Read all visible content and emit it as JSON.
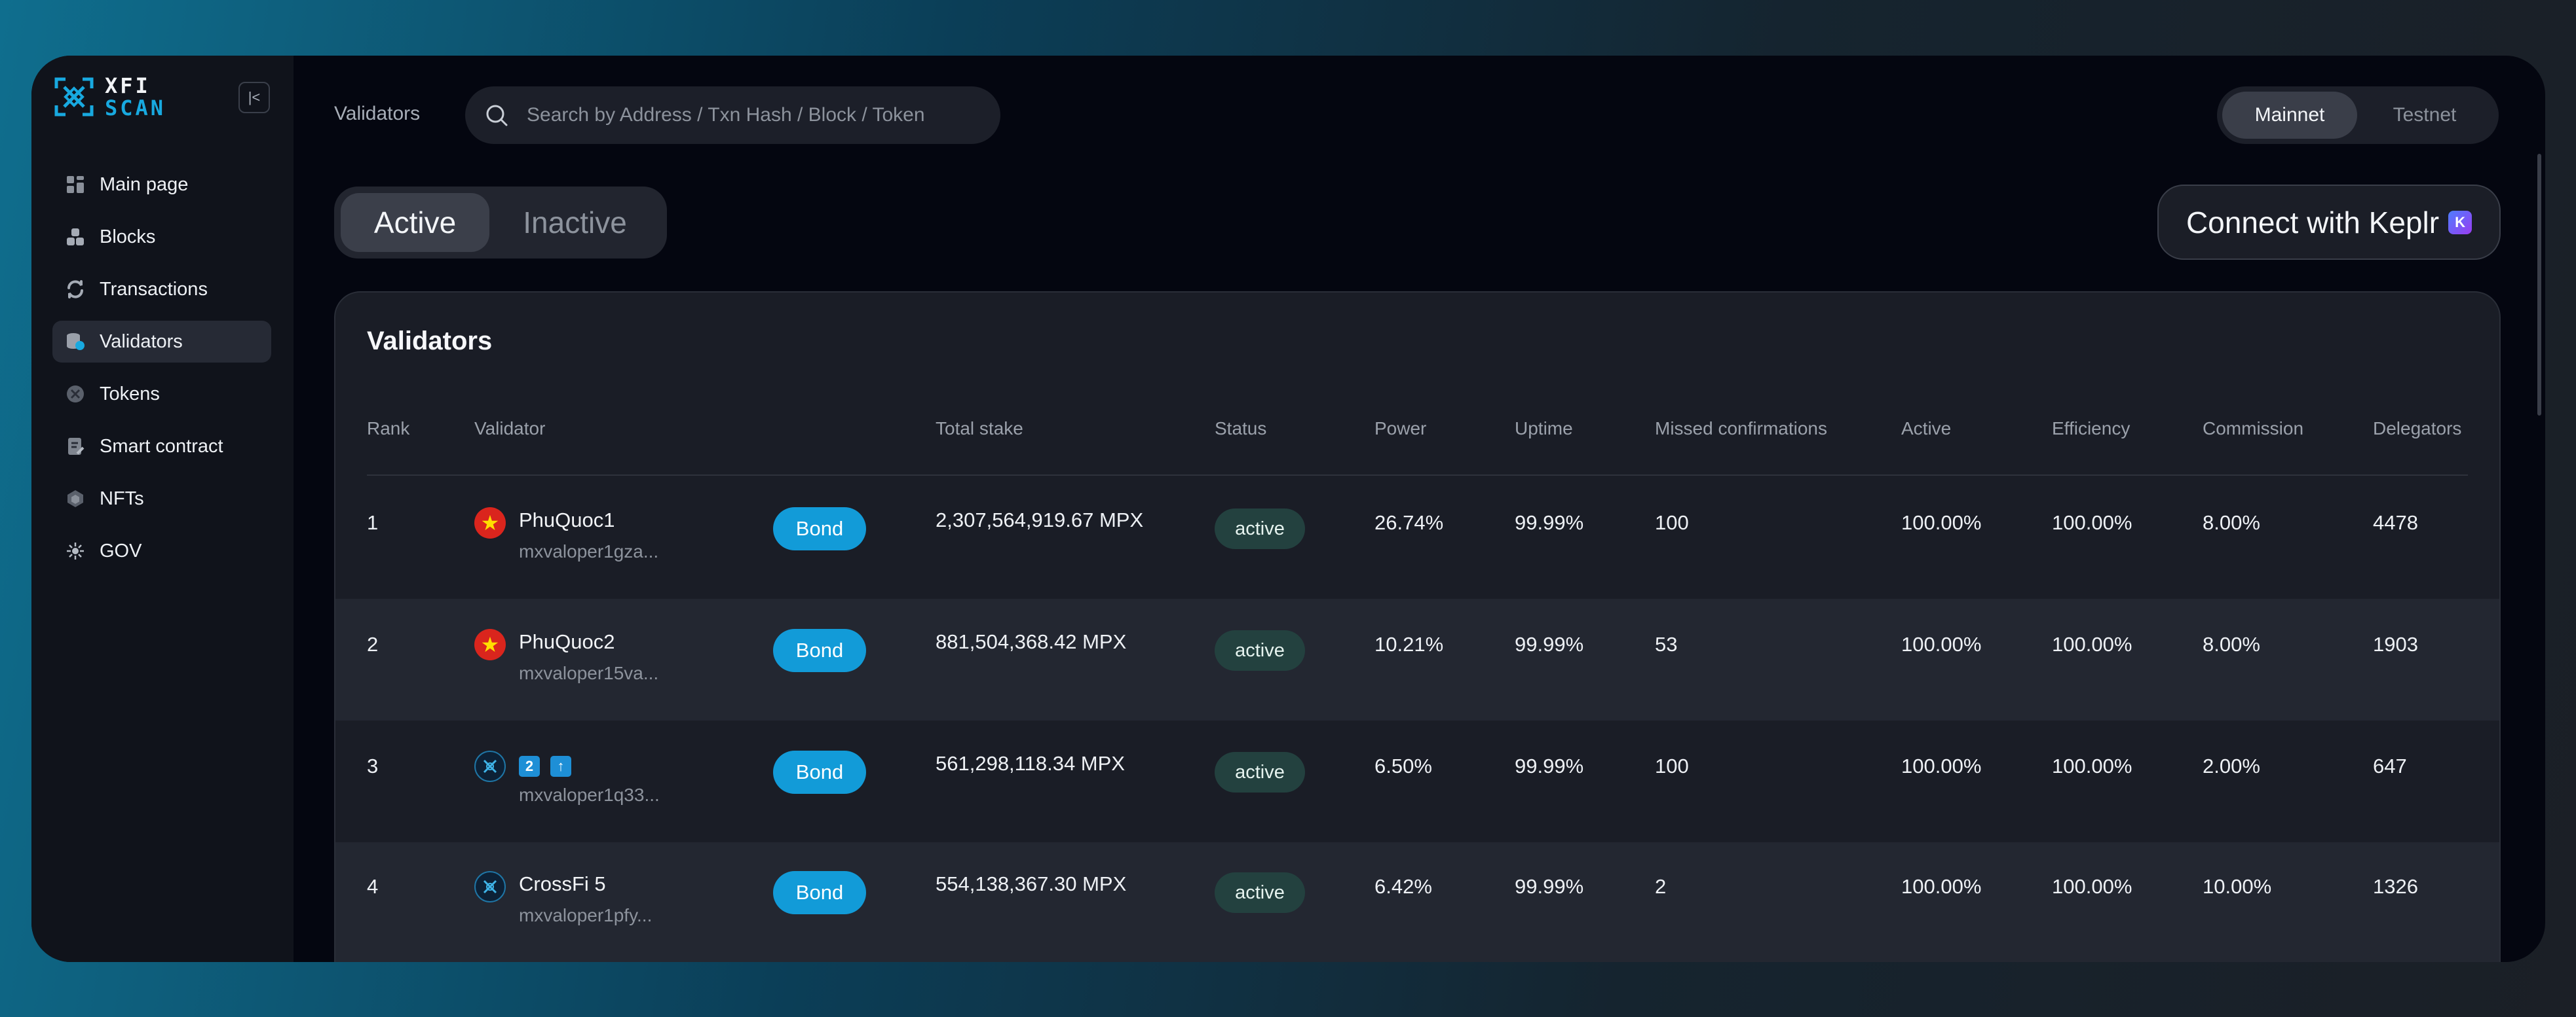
{
  "app": {
    "logo_line1": "XFI",
    "logo_line2": "SCAN",
    "collapse_glyph": "|<"
  },
  "sidebar": {
    "items": [
      {
        "label": "Main page",
        "icon": "dashboard-icon"
      },
      {
        "label": "Blocks",
        "icon": "blocks-icon"
      },
      {
        "label": "Transactions",
        "icon": "transactions-icon"
      },
      {
        "label": "Validators",
        "icon": "validators-icon",
        "active": true
      },
      {
        "label": "Tokens",
        "icon": "tokens-icon"
      },
      {
        "label": "Smart contract",
        "icon": "smart-contract-icon"
      },
      {
        "label": "NFTs",
        "icon": "nfts-icon"
      },
      {
        "label": "GOV",
        "icon": "gov-icon"
      }
    ]
  },
  "header": {
    "breadcrumb": "Validators",
    "search_placeholder": "Search by Address / Txn Hash / Block / Token",
    "network": {
      "mainnet": "Mainnet",
      "testnet": "Testnet",
      "selected": "Mainnet"
    }
  },
  "tabs": {
    "active": "Active",
    "inactive": "Inactive",
    "selected": "Active"
  },
  "keplr": {
    "label": "Connect with Keplr",
    "badge": "K"
  },
  "table": {
    "title": "Validators",
    "columns": {
      "rank": "Rank",
      "validator": "Validator",
      "total_stake": "Total stake",
      "status": "Status",
      "power": "Power",
      "uptime": "Uptime",
      "missed": "Missed confirmations",
      "active": "Active",
      "efficiency": "Efficiency",
      "commission": "Commission",
      "delegators": "Delegators"
    },
    "bond_label": "Bond",
    "rows": [
      {
        "rank": "1",
        "name": "PhuQuoc1",
        "address": "mxvaloper1gza...",
        "avatar": "vietnam-flag-icon",
        "total_stake": "2,307,564,919.67 MPX",
        "status": "active",
        "power": "26.74%",
        "uptime": "99.99%",
        "missed": "100",
        "active": "100.00%",
        "efficiency": "100.00%",
        "commission": "8.00%",
        "delegators": "4478"
      },
      {
        "rank": "2",
        "name": "PhuQuoc2",
        "address": "mxvaloper15va...",
        "avatar": "vietnam-flag-icon",
        "total_stake": "881,504,368.42 MPX",
        "status": "active",
        "power": "10.21%",
        "uptime": "99.99%",
        "missed": "53",
        "active": "100.00%",
        "efficiency": "100.00%",
        "commission": "8.00%",
        "delegators": "1903"
      },
      {
        "rank": "3",
        "name": "",
        "name_emoji": [
          "2",
          "↑"
        ],
        "address": "mxvaloper1q33...",
        "avatar": "crossfi-logo-icon",
        "total_stake": "561,298,118.34 MPX",
        "status": "active",
        "power": "6.50%",
        "uptime": "99.99%",
        "missed": "100",
        "active": "100.00%",
        "efficiency": "100.00%",
        "commission": "2.00%",
        "delegators": "647"
      },
      {
        "rank": "4",
        "name": "CrossFi 5",
        "address": "mxvaloper1pfy...",
        "avatar": "crossfi-logo-icon",
        "total_stake": "554,138,367.30 MPX",
        "status": "active",
        "power": "6.42%",
        "uptime": "99.99%",
        "missed": "2",
        "active": "100.00%",
        "efficiency": "100.00%",
        "commission": "10.00%",
        "delegators": "1326"
      }
    ]
  }
}
